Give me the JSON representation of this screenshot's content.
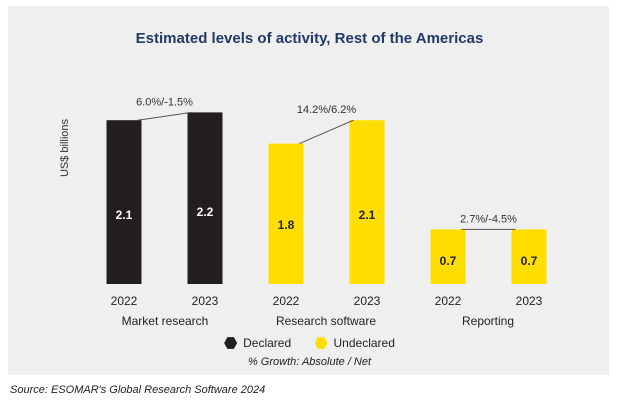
{
  "title": "Estimated levels of activity, Rest of the Americas",
  "source": "Source: ESOMAR's Global Research Software 2024",
  "note": "% Growth: Absolute / Net",
  "chart_data": {
    "type": "bar",
    "title": "Estimated levels of activity, Rest of the Americas",
    "ylabel": "US$ billions",
    "xlabel": "",
    "ylim": [
      0,
      2.6
    ],
    "grid": false,
    "legend_position": "bottom",
    "legend": [
      {
        "label": "Declared",
        "color": "#231f20"
      },
      {
        "label": "Undeclared",
        "color": "#ffde00"
      }
    ],
    "groups": [
      {
        "name": "Market research",
        "growth": "6.0%/-1.5%",
        "series": "Declared",
        "color": "#231f20",
        "label_color": "#ffffff",
        "bars": [
          {
            "year": "2022",
            "value": 2.1,
            "label": "2.1"
          },
          {
            "year": "2023",
            "value": 2.2,
            "label": "2.2"
          }
        ]
      },
      {
        "name": "Research software",
        "growth": "14.2%/6.2%",
        "series": "Undeclared",
        "color": "#ffde00",
        "label_color": "#222222",
        "bars": [
          {
            "year": "2022",
            "value": 1.8,
            "label": "1.8"
          },
          {
            "year": "2023",
            "value": 2.1,
            "label": "2.1"
          }
        ]
      },
      {
        "name": "Reporting",
        "growth": "2.7%/-4.5%",
        "series": "Undeclared",
        "color": "#ffde00",
        "label_color": "#222222",
        "bars": [
          {
            "year": "2022",
            "value": 0.7,
            "label": "0.7"
          },
          {
            "year": "2023",
            "value": 0.7,
            "label": "0.7"
          }
        ]
      }
    ]
  }
}
